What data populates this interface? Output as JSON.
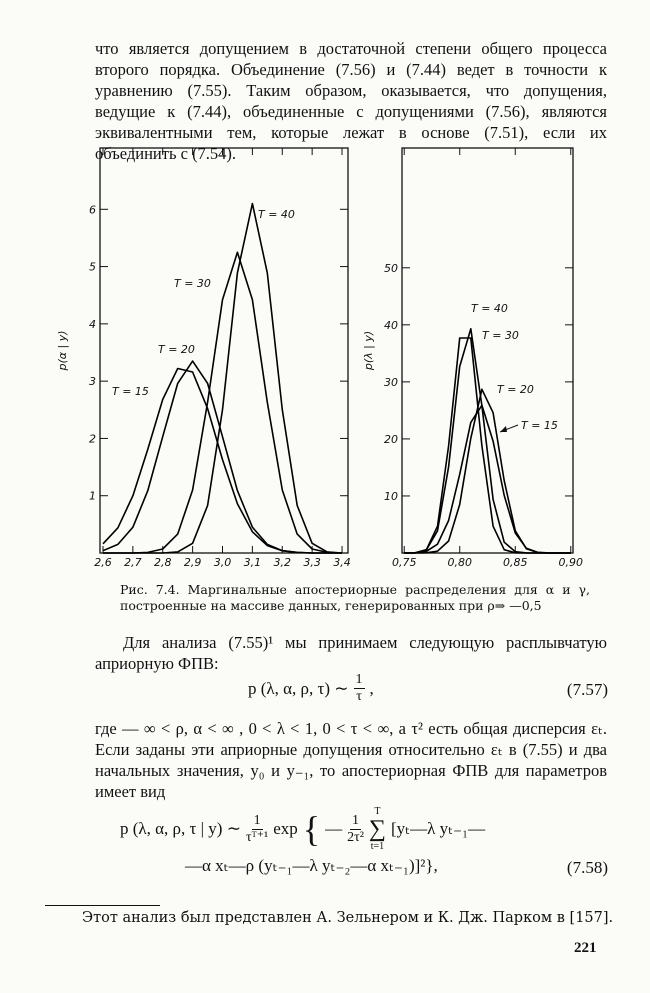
{
  "paragraphs": [
    "что является допущением в достаточной степени общего процесса второго порядка. Объединение (7.56) и (7.44) ведет в точности к уравнению (7.55). Таким образом, оказывается, что допущения, ведущие к (7.44), объединенные с допущениями (7.56), являются эквивалентными тем, которые лежат в основе (7.51), если их объединить с (7.54).",
    "Для анализа (7.55)¹ мы принимаем следующую расплывчатую априорную ФПВ:",
    "где — ∞ < ρ, α < ∞ , 0 < λ < 1, 0 < τ < ∞, а τ² есть общая дисперсия εₜ. Если заданы эти априорные допущения относительно εₜ в (7.55) и два начальных значения, y₀ и y₋₁, то апостериорная ФПВ для параметров имеет вид"
  ],
  "chart_data": [
    {
      "type": "line",
      "y_label": "p(α | y)",
      "x": [
        2.6,
        2.65,
        2.7,
        2.75,
        2.8,
        2.85,
        2.9,
        2.95,
        3.0,
        3.05,
        3.1,
        3.15,
        3.2,
        3.25,
        3.3,
        3.35,
        3.4
      ],
      "xlim": [
        2.59,
        3.42
      ],
      "xticks": [
        {
          "value": 2.6,
          "label": "2,6"
        },
        {
          "value": 2.7,
          "label": "2,7"
        },
        {
          "value": 2.8,
          "label": "2,8"
        },
        {
          "value": 2.9,
          "label": "2,9"
        },
        {
          "value": 3.0,
          "label": "3,0"
        },
        {
          "value": 3.1,
          "label": "3,1"
        },
        {
          "value": 3.2,
          "label": "3,2"
        },
        {
          "value": 3.3,
          "label": "3,3"
        },
        {
          "value": 3.4,
          "label": "3,4"
        }
      ],
      "ylim": [
        0,
        7.07
      ],
      "yticks": [
        1,
        2,
        3,
        4,
        5,
        6
      ],
      "series": [
        {
          "name": "T = 15",
          "color": "#000000",
          "values": [
            0.16,
            0.44,
            1.0,
            1.81,
            2.68,
            3.22,
            3.16,
            2.52,
            1.63,
            0.86,
            0.37,
            0.13,
            0.04,
            0.01,
            0,
            0,
            0
          ]
        },
        {
          "name": "T = 20",
          "color": "#000000",
          "values": [
            0.04,
            0.15,
            0.45,
            1.09,
            2.03,
            2.96,
            3.35,
            2.96,
            2.03,
            1.09,
            0.45,
            0.15,
            0.04,
            0.01,
            0,
            0,
            0
          ]
        },
        {
          "name": "T = 30",
          "color": "#000000",
          "values": [
            0,
            0,
            0,
            0.01,
            0.07,
            0.33,
            1.1,
            2.63,
            4.42,
            5.25,
            4.42,
            2.63,
            1.1,
            0.33,
            0.07,
            0.01,
            0
          ]
        },
        {
          "name": "T = 40",
          "color": "#000000",
          "values": [
            0,
            0,
            0,
            0,
            0,
            0.02,
            0.17,
            0.83,
            2.5,
            4.89,
            6.1,
            4.89,
            2.5,
            0.83,
            0.17,
            0.02,
            0
          ]
        }
      ]
    },
    {
      "type": "line",
      "y_label": "p(λ | y)",
      "x": [
        0.75,
        0.76,
        0.77,
        0.78,
        0.79,
        0.8,
        0.81,
        0.82,
        0.83,
        0.84,
        0.85,
        0.86,
        0.87,
        0.88,
        0.89,
        0.9
      ],
      "xlim": [
        0.748,
        0.902
      ],
      "xticks": [
        {
          "value": 0.75,
          "label": "0,75"
        },
        {
          "value": 0.8,
          "label": "0,80"
        },
        {
          "value": 0.85,
          "label": "0,85"
        },
        {
          "value": 0.9,
          "label": "0,90"
        }
      ],
      "ylim": [
        0,
        71
      ],
      "yticks": [
        10,
        20,
        30,
        40,
        50
      ],
      "series": [
        {
          "name": "T = 15",
          "color": "#000000",
          "values": [
            0,
            0.04,
            0.29,
            1.55,
            5.7,
            13.8,
            22.9,
            25.9,
            19.6,
            10.1,
            3.5,
            0.83,
            0.13,
            0.01,
            0,
            0
          ]
        },
        {
          "name": "T = 20",
          "color": "#000000",
          "values": [
            0,
            0,
            0.03,
            0.32,
            2.1,
            8.5,
            20.1,
            28.7,
            24.6,
            12.7,
            3.9,
            0.73,
            0.08,
            0,
            0,
            0
          ]
        },
        {
          "name": "T = 30",
          "color": "#000000",
          "values": [
            0,
            0.04,
            0.55,
            3.9,
            15.1,
            32.7,
            39.3,
            25.8,
            9.4,
            1.9,
            0.22,
            0.01,
            0,
            0,
            0,
            0
          ]
        },
        {
          "name": "T = 40",
          "color": "#000000",
          "values": [
            0,
            0.04,
            0.58,
            4.7,
            18.8,
            37.7,
            37.7,
            18.8,
            4.7,
            0.58,
            0.04,
            0,
            0,
            0,
            0,
            0
          ]
        }
      ]
    }
  ],
  "caption": "Рис. 7.4. Маргинальные апостериорные распределения для α и γ, построенные на массиве данных, генерированных при ρ⇒ —0,5",
  "equation_7_57": {
    "lhs": "p (λ, α, ρ, τ) ∼",
    "numerator": "1",
    "denominator": "τ",
    "tail": ",",
    "number": "(7.57)"
  },
  "equation_7_58": {
    "lhs": "p (λ, α, ρ, τ | y) ∼",
    "numerator": "1",
    "denominator": "τᵀ⁺¹",
    "exp": "exp",
    "minus": "—",
    "numerator2": "1",
    "denominator2": "2τ²",
    "sum_top": "T",
    "sum": "∑",
    "sum_bottom": "t=1",
    "line1_tail": "[yₜ—λ yₜ₋₁—",
    "line2": "—α xₜ—ρ (yₜ₋₁—λ yₜ₋₂—α xₜ₋₁)]²},",
    "number": "(7.58)"
  },
  "footnote": "Этот анализ был представлен А. Зельнером и К. Дж. Парком в [157].",
  "page_number": "221"
}
